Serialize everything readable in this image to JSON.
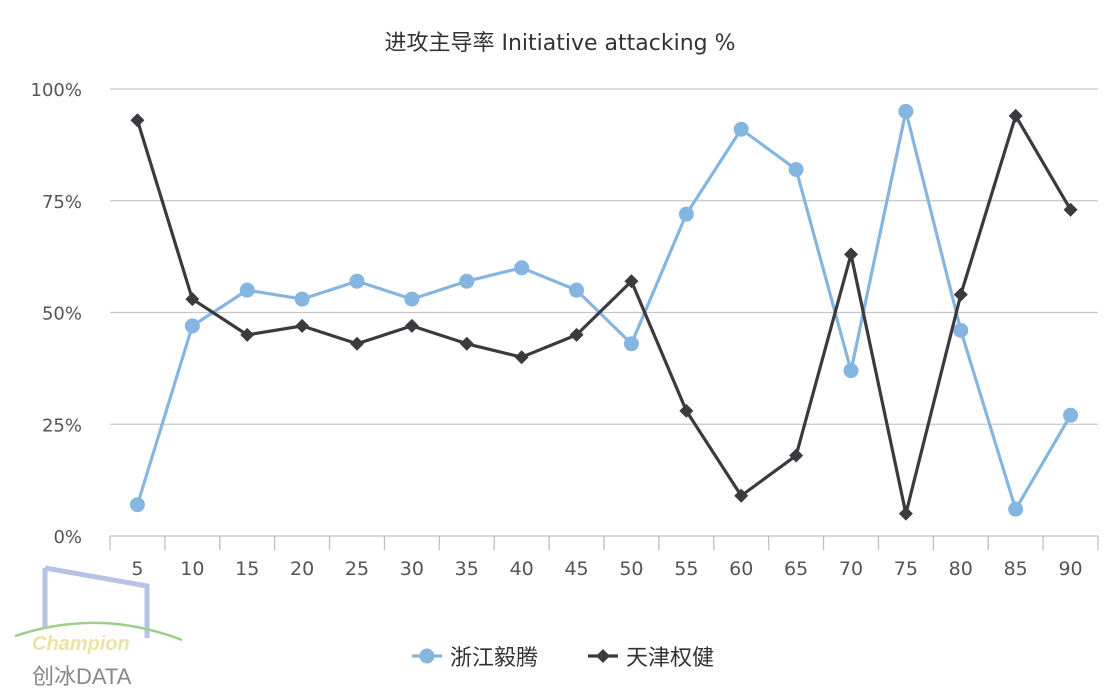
{
  "chart_data": {
    "type": "line",
    "title": "进攻主导率 Initiative attacking %",
    "xlabel": "",
    "ylabel": "",
    "categories": [
      "5",
      "10",
      "15",
      "20",
      "25",
      "30",
      "35",
      "40",
      "45",
      "50",
      "55",
      "60",
      "65",
      "70",
      "75",
      "80",
      "85",
      "90"
    ],
    "ylim": [
      0,
      100
    ],
    "yticks": [
      "0%",
      "25%",
      "50%",
      "75%",
      "100%"
    ],
    "ytick_values": [
      0,
      25,
      50,
      75,
      100
    ],
    "grid": true,
    "legend_position": "bottom",
    "series": [
      {
        "name": "浙江毅腾",
        "color": "#85b6e2",
        "marker": "circle",
        "values": [
          7,
          47,
          55,
          53,
          57,
          53,
          57,
          60,
          55,
          43,
          72,
          91,
          82,
          37,
          95,
          46,
          6,
          27
        ]
      },
      {
        "name": "天津权健",
        "color": "#3a3a3f",
        "marker": "diamond",
        "values": [
          93,
          53,
          45,
          47,
          43,
          47,
          43,
          40,
          45,
          57,
          28,
          9,
          18,
          63,
          5,
          54,
          94,
          73
        ]
      }
    ]
  },
  "watermark": {
    "text_en": "Champion",
    "text_cn": "创冰DATA"
  }
}
